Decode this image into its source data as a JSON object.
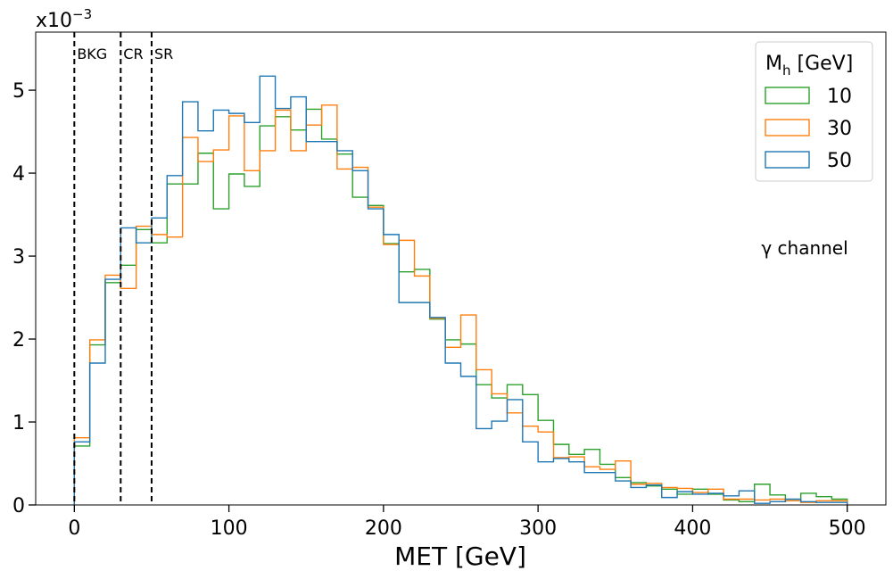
{
  "chart_data": {
    "type": "step-histogram",
    "xlabel": "MET [GeV]",
    "ylabel": "",
    "xlim": [
      -25,
      525
    ],
    "ylim": [
      0,
      5.7
    ],
    "y_scale_label": {
      "base": "x10",
      "exp": "−3"
    },
    "x_ticks": [
      0,
      100,
      200,
      300,
      400,
      500
    ],
    "y_ticks": [
      0,
      1,
      2,
      3,
      4,
      5
    ],
    "bin_width": 10,
    "bin_edges_start": 0,
    "region_lines": [
      {
        "x": 0,
        "label": "BKG"
      },
      {
        "x": 30,
        "label": "CR"
      },
      {
        "x": 50,
        "label": "SR"
      }
    ],
    "legend": {
      "title_base": "M",
      "title_sub": "h",
      "title_suffix": " [GeV]",
      "location": "top-right"
    },
    "annotation": "γ channel",
    "series": [
      {
        "name": "10",
        "color": "#2ca02c",
        "values": [
          0.71,
          1.93,
          2.68,
          2.89,
          3.32,
          3.16,
          3.87,
          3.87,
          4.24,
          3.57,
          3.99,
          3.84,
          4.57,
          4.68,
          4.52,
          4.77,
          4.41,
          4.23,
          3.71,
          3.61,
          3.15,
          2.81,
          2.84,
          2.24,
          1.99,
          1.94,
          1.45,
          1.29,
          1.45,
          1.33,
          1.02,
          0.73,
          0.61,
          0.67,
          0.49,
          0.33,
          0.27,
          0.23,
          0.19,
          0.13,
          0.19,
          0.13,
          0.06,
          0.04,
          0.25,
          0.12,
          0.05,
          0.14,
          0.1,
          0.07
        ]
      },
      {
        "name": "30",
        "color": "#ff7f0e",
        "values": [
          0.81,
          1.99,
          2.77,
          2.61,
          3.36,
          3.26,
          3.23,
          4.43,
          4.14,
          4.28,
          4.69,
          4.03,
          4.27,
          4.76,
          4.27,
          4.58,
          4.82,
          4.05,
          4.07,
          3.59,
          3.14,
          3.19,
          2.76,
          2.25,
          1.9,
          2.29,
          1.63,
          1.34,
          1.11,
          0.95,
          0.88,
          0.57,
          0.58,
          0.46,
          0.43,
          0.53,
          0.25,
          0.26,
          0.21,
          0.2,
          0.15,
          0.19,
          0.07,
          0.07,
          0.06,
          0.07,
          0.05,
          0.03,
          0.05,
          0.05
        ]
      },
      {
        "name": "50",
        "color": "#1f77b4",
        "values": [
          0.76,
          1.71,
          2.72,
          3.34,
          3.16,
          3.46,
          3.97,
          4.86,
          4.51,
          4.76,
          4.72,
          4.61,
          5.17,
          4.78,
          4.92,
          4.38,
          4.38,
          4.27,
          4.03,
          3.57,
          3.26,
          2.44,
          2.44,
          2.26,
          1.71,
          1.55,
          0.92,
          1.01,
          1.27,
          0.76,
          0.52,
          0.56,
          0.52,
          0.39,
          0.39,
          0.29,
          0.21,
          0.24,
          0.09,
          0.16,
          0.13,
          0.14,
          0.11,
          0.17,
          0.02,
          0.04,
          0.07,
          0.04,
          0.03,
          0.03
        ]
      }
    ]
  }
}
